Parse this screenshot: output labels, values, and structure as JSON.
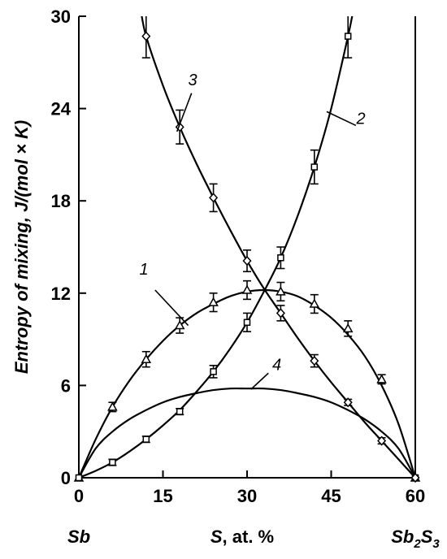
{
  "chart_data": {
    "type": "line",
    "title": "",
    "xlabel_var": "S",
    "xlabel_rest": ", at. %",
    "ylabel": "Entropy of mixing, J/(mol  × K)",
    "xlim": [
      0,
      60
    ],
    "ylim": [
      0,
      30
    ],
    "x_ticks": [
      0,
      15,
      30,
      45,
      60
    ],
    "y_ticks": [
      0,
      6,
      12,
      18,
      24,
      30
    ],
    "left_end_label": "Sb",
    "right_end_label_base1": "Sb",
    "right_end_label_sub1": "2",
    "right_end_label_base2": "S",
    "right_end_label_sub2": "3",
    "grid": false,
    "legend": "none",
    "series": [
      {
        "name": "1",
        "marker": "triangle",
        "points": [
          [
            0,
            0
          ],
          [
            6,
            4.6
          ],
          [
            12,
            7.7
          ],
          [
            18,
            9.9
          ],
          [
            24,
            11.4
          ],
          [
            30,
            12.2
          ],
          [
            36,
            12.1
          ],
          [
            42,
            11.3
          ],
          [
            48,
            9.7
          ],
          [
            54,
            6.4
          ],
          [
            60,
            0
          ]
        ],
        "errors": [
          0,
          0.3,
          0.5,
          0.5,
          0.6,
          0.6,
          0.6,
          0.6,
          0.5,
          0.3,
          0
        ],
        "curve": [
          [
            0,
            0
          ],
          [
            3,
            2.5
          ],
          [
            6,
            4.6
          ],
          [
            9,
            6.3
          ],
          [
            12,
            7.7
          ],
          [
            15,
            8.9
          ],
          [
            18,
            9.9
          ],
          [
            21,
            10.7
          ],
          [
            24,
            11.3
          ],
          [
            27,
            11.8
          ],
          [
            30,
            12.1
          ],
          [
            33,
            12.2
          ],
          [
            36,
            12.1
          ],
          [
            39,
            11.8
          ],
          [
            42,
            11.2
          ],
          [
            45,
            10.4
          ],
          [
            48,
            9.3
          ],
          [
            51,
            7.9
          ],
          [
            54,
            6.0
          ],
          [
            57,
            3.5
          ],
          [
            60,
            0
          ]
        ]
      },
      {
        "name": "2",
        "marker": "square",
        "points": [
          [
            0,
            0
          ],
          [
            6,
            1.0
          ],
          [
            12,
            2.5
          ],
          [
            18,
            4.3
          ],
          [
            24,
            6.9
          ],
          [
            30,
            10.1
          ],
          [
            36,
            14.3
          ],
          [
            42,
            20.2
          ],
          [
            48,
            28.7
          ],
          [
            60,
            0
          ]
        ],
        "errors": [
          0,
          0.2,
          0.2,
          0.2,
          0.4,
          0.6,
          0.7,
          1.1,
          1.4,
          0
        ],
        "curve": [
          [
            0,
            0
          ],
          [
            3,
            0.45
          ],
          [
            6,
            1.0
          ],
          [
            9,
            1.7
          ],
          [
            12,
            2.5
          ],
          [
            15,
            3.4
          ],
          [
            18,
            4.4
          ],
          [
            21,
            5.6
          ],
          [
            24,
            6.9
          ],
          [
            27,
            8.4
          ],
          [
            30,
            10.1
          ],
          [
            33,
            12.1
          ],
          [
            36,
            14.3
          ],
          [
            39,
            17.0
          ],
          [
            42,
            20.2
          ],
          [
            45,
            24.0
          ],
          [
            48,
            28.7
          ],
          [
            49,
            30.5
          ]
        ]
      },
      {
        "name": "3",
        "marker": "diamond",
        "points": [
          [
            12,
            28.7
          ],
          [
            18,
            22.8
          ],
          [
            24,
            18.2
          ],
          [
            30,
            14.1
          ],
          [
            36,
            10.7
          ],
          [
            42,
            7.6
          ],
          [
            48,
            4.9
          ],
          [
            54,
            2.4
          ],
          [
            60,
            0
          ]
        ],
        "errors": [
          1.4,
          1.1,
          0.9,
          0.7,
          0.5,
          0.4,
          0.2,
          0.2,
          0
        ],
        "curve": [
          [
            11,
            30.5
          ],
          [
            12,
            28.7
          ],
          [
            15,
            25.5
          ],
          [
            18,
            22.8
          ],
          [
            21,
            20.4
          ],
          [
            24,
            18.2
          ],
          [
            27,
            16.1
          ],
          [
            30,
            14.1
          ],
          [
            33,
            12.3
          ],
          [
            36,
            10.7
          ],
          [
            39,
            9.1
          ],
          [
            42,
            7.6
          ],
          [
            45,
            6.2
          ],
          [
            48,
            4.9
          ],
          [
            51,
            3.6
          ],
          [
            54,
            2.4
          ],
          [
            57,
            1.2
          ],
          [
            60,
            0
          ]
        ]
      },
      {
        "name": "4",
        "marker": "none",
        "curve": [
          [
            0,
            0
          ],
          [
            3,
            1.9
          ],
          [
            6,
            3.0
          ],
          [
            9,
            3.8
          ],
          [
            12,
            4.4
          ],
          [
            15,
            4.9
          ],
          [
            18,
            5.25
          ],
          [
            21,
            5.5
          ],
          [
            24,
            5.7
          ],
          [
            27,
            5.8
          ],
          [
            30,
            5.8
          ],
          [
            33,
            5.8
          ],
          [
            36,
            5.7
          ],
          [
            39,
            5.5
          ],
          [
            42,
            5.25
          ],
          [
            45,
            4.9
          ],
          [
            48,
            4.4
          ],
          [
            51,
            3.8
          ],
          [
            54,
            3.0
          ],
          [
            57,
            1.9
          ],
          [
            60,
            0
          ]
        ]
      }
    ]
  }
}
